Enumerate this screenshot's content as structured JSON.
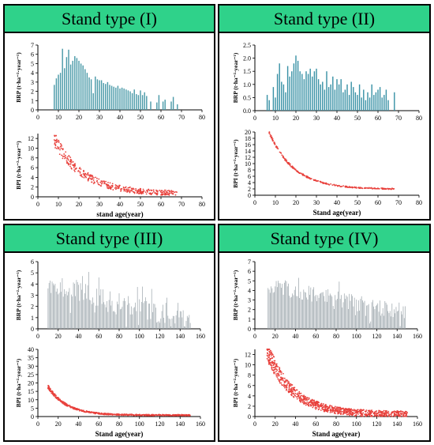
{
  "colors": {
    "header_bg": "#2fd28a",
    "bar_I": "#4a9aa8",
    "bar_II": "#3a92a6",
    "bar_III": "#9da7ad",
    "bar_IV": "#9aa4aa",
    "point": "#e8413c"
  },
  "panels": [
    {
      "title": "Stand type (I)"
    },
    {
      "title": "Stand type (II)"
    },
    {
      "title": "Stand type (III)"
    },
    {
      "title": "Stand type (IV)"
    }
  ],
  "chart_data": [
    {
      "type": "bar",
      "panel": "Stand type (I)",
      "ylabel": "BRP (t·ha⁻²·year⁻¹)",
      "xlim": [
        0,
        80
      ],
      "ylim": [
        0,
        7
      ],
      "xticks": [
        0,
        10,
        20,
        30,
        40,
        50,
        60,
        70,
        80
      ],
      "yticks": [
        0,
        1,
        2,
        3,
        4,
        5,
        6,
        7
      ],
      "x": [
        8,
        9,
        10,
        11,
        12,
        13,
        14,
        15,
        16,
        17,
        18,
        19,
        20,
        21,
        22,
        23,
        24,
        25,
        26,
        27,
        28,
        29,
        30,
        31,
        32,
        33,
        34,
        35,
        36,
        37,
        38,
        39,
        40,
        41,
        42,
        43,
        44,
        45,
        46,
        47,
        48,
        49,
        50,
        51,
        52,
        53,
        55,
        58,
        59,
        61,
        62,
        65,
        66,
        68
      ],
      "values": [
        2.7,
        3.4,
        3.8,
        4.0,
        6.6,
        4.5,
        5.7,
        6.5,
        4.9,
        5.3,
        5.8,
        5.6,
        5.3,
        5.0,
        4.8,
        4.4,
        4.0,
        3.5,
        3.3,
        1.8,
        3.6,
        3.3,
        3.2,
        3.2,
        2.9,
        2.8,
        3.0,
        2.7,
        2.6,
        2.5,
        2.4,
        2.6,
        2.3,
        2.4,
        2.3,
        2.2,
        2.1,
        2.0,
        1.8,
        2.2,
        1.7,
        1.6,
        2.1,
        1.6,
        1.9,
        1.5,
        0.9,
        0.8,
        1.6,
        0.9,
        1.1,
        0.9,
        1.4,
        0.6
      ]
    },
    {
      "type": "scatter",
      "panel": "Stand type (I)",
      "ylabel": "BPI (t·ha⁻²·year⁻¹)",
      "xlabel": "stand age(year)",
      "xlim": [
        0,
        80
      ],
      "ylim": [
        0,
        13
      ],
      "xticks": [
        0,
        10,
        20,
        30,
        40,
        50,
        60,
        70,
        80
      ],
      "yticks": [
        0,
        2,
        4,
        6,
        8,
        10,
        12
      ],
      "model": {
        "a": 11.3,
        "tau": 14,
        "c": 0.6,
        "xmin": 8,
        "xmax": 68,
        "n": 380,
        "spread": 1.1
      }
    },
    {
      "type": "bar",
      "panel": "Stand type (II)",
      "ylabel": "BRP (t·ha⁻²·year⁻¹)",
      "xlim": [
        0,
        80
      ],
      "ylim": [
        0,
        2.5
      ],
      "xticks": [
        0,
        10,
        20,
        30,
        40,
        50,
        60,
        70,
        80
      ],
      "yticks": [
        0.0,
        0.5,
        1.0,
        1.5,
        2.0,
        2.5
      ],
      "x": [
        6,
        7,
        9,
        10,
        11,
        12,
        13,
        14,
        15,
        16,
        17,
        18,
        19,
        20,
        21,
        22,
        23,
        24,
        25,
        26,
        27,
        28,
        29,
        30,
        31,
        32,
        33,
        34,
        35,
        36,
        37,
        38,
        39,
        40,
        41,
        42,
        43,
        44,
        45,
        46,
        47,
        48,
        49,
        50,
        51,
        52,
        53,
        54,
        55,
        56,
        57,
        58,
        59,
        60,
        61,
        62,
        63,
        64,
        65,
        68
      ],
      "values": [
        0.6,
        0.4,
        0.9,
        0.5,
        1.4,
        1.8,
        1.1,
        1.0,
        0.7,
        1.7,
        1.3,
        1.5,
        1.8,
        2.1,
        1.9,
        1.5,
        1.4,
        1.2,
        1.5,
        1.4,
        1.6,
        1.3,
        1.5,
        1.6,
        1.2,
        1.0,
        1.1,
        0.8,
        1.5,
        0.9,
        1.0,
        1.3,
        0.8,
        1.2,
        1.0,
        1.2,
        0.7,
        0.8,
        1.0,
        0.6,
        1.1,
        0.9,
        0.7,
        0.6,
        1.0,
        0.5,
        0.8,
        0.4,
        0.7,
        0.5,
        1.0,
        0.6,
        0.7,
        0.8,
        0.9,
        0.5,
        0.6,
        0.8,
        0.4,
        0.7
      ]
    },
    {
      "type": "scatter",
      "panel": "Stand type (II)",
      "ylabel": "BPI (t·ha⁻²·year⁻¹)",
      "xlabel": "Stand age(year)",
      "xlim": [
        0,
        80
      ],
      "ylim": [
        0,
        20
      ],
      "xticks": [
        0,
        10,
        20,
        30,
        40,
        50,
        60,
        70,
        80
      ],
      "yticks": [
        0,
        2,
        4,
        6,
        8,
        10,
        12,
        14,
        16,
        18,
        20
      ],
      "model": {
        "a": 18.0,
        "tau": 12,
        "c": 1.9,
        "xmin": 7,
        "xmax": 68,
        "n": 260,
        "spread": 0.35
      }
    },
    {
      "type": "bar",
      "panel": "Stand type (III)",
      "ylabel": "BRP (t·ha⁻²·year⁻¹)",
      "xlim": [
        0,
        160
      ],
      "ylim": [
        0,
        6
      ],
      "xticks": [
        0,
        20,
        40,
        60,
        80,
        100,
        120,
        140,
        160
      ],
      "yticks": [
        0,
        1,
        2,
        3,
        4,
        5,
        6
      ],
      "model": {
        "xmin": 10,
        "xmax": 150,
        "step": 1,
        "start": 4.0,
        "end": 0.6,
        "noise": 1.3
      }
    },
    {
      "type": "scatter",
      "panel": "Stand type (III)",
      "ylabel": "BPI (t·ha⁻²·year⁻¹)",
      "xlabel": "Stand age(year)",
      "xlim": [
        0,
        160
      ],
      "ylim": [
        0,
        40
      ],
      "xticks": [
        0,
        20,
        40,
        60,
        80,
        100,
        120,
        140,
        160
      ],
      "yticks": [
        0,
        5,
        10,
        15,
        20,
        25,
        30,
        35,
        40
      ],
      "model": {
        "a": 17.0,
        "tau": 18,
        "c": 0.8,
        "xmin": 10,
        "xmax": 150,
        "n": 600,
        "spread": 0.8
      }
    },
    {
      "type": "bar",
      "panel": "Stand type (IV)",
      "ylabel": "BRP (t·ha⁻²·year⁻¹)",
      "xlim": [
        0,
        160
      ],
      "ylim": [
        0,
        7
      ],
      "xticks": [
        0,
        20,
        40,
        60,
        80,
        100,
        120,
        140,
        160
      ],
      "yticks": [
        0,
        1,
        2,
        3,
        4,
        5,
        6,
        7
      ],
      "model": {
        "xmin": 13,
        "xmax": 148,
        "step": 1,
        "start": 4.6,
        "end": 1.6,
        "noise": 1.2
      }
    },
    {
      "type": "scatter",
      "panel": "Stand type (IV)",
      "ylabel": "BPI (t·ha⁻²·year⁻¹)",
      "xlabel": "Stand age(year)",
      "xlim": [
        0,
        160
      ],
      "ylim": [
        0,
        13
      ],
      "xticks": [
        0,
        20,
        40,
        60,
        80,
        100,
        120,
        140,
        160
      ],
      "yticks": [
        0,
        2,
        4,
        6,
        8,
        10,
        12
      ],
      "model": {
        "a": 12.5,
        "tau": 25,
        "c": 0.4,
        "xmin": 12,
        "xmax": 150,
        "n": 900,
        "spread": 1.4
      }
    }
  ]
}
